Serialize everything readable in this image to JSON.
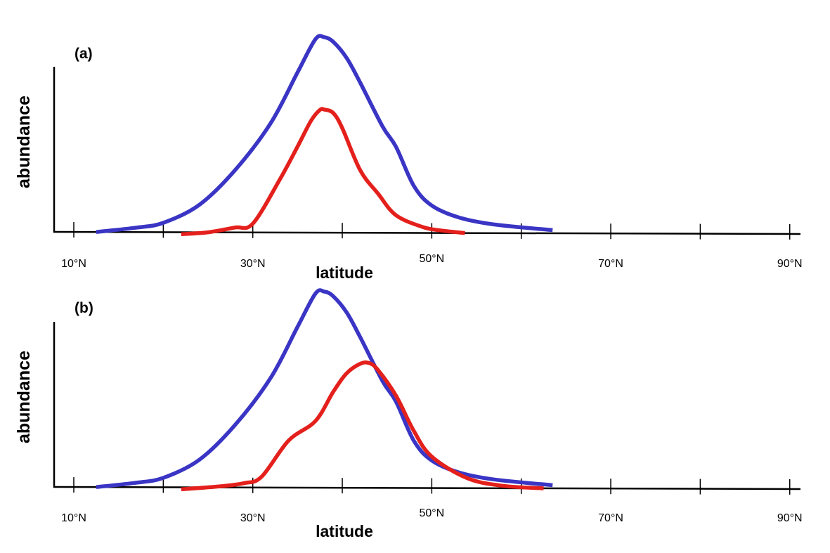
{
  "chart_data": [
    {
      "type": "line",
      "panel_label": "(a)",
      "xlabel": "latitude",
      "ylabel": "abundance",
      "x_unit": "°N",
      "xlim": [
        7.8,
        91.2
      ],
      "ylim": [
        0,
        1.0
      ],
      "x_ticks": [
        10,
        20,
        30,
        40,
        50,
        60,
        70,
        80,
        90
      ],
      "x_tick_labels": [
        {
          "x": 10,
          "label": "10°N"
        },
        {
          "x": 30,
          "label": "30°N"
        },
        {
          "x": 50,
          "label": "50°N"
        },
        {
          "x": 70,
          "label": "70°N"
        },
        {
          "x": 90,
          "label": "90°N"
        }
      ],
      "grid": false,
      "legend": "none",
      "series": [
        {
          "color": "#3a35c4",
          "x": [
            12.5,
            17,
            20,
            24,
            28,
            32,
            35,
            37,
            38,
            39,
            40.5,
            42,
            44.5,
            46,
            48,
            50,
            53,
            57,
            63.5
          ],
          "y": [
            0.0,
            0.023,
            0.048,
            0.14,
            0.318,
            0.56,
            0.82,
            0.99,
            1.0,
            0.976,
            0.893,
            0.768,
            0.544,
            0.44,
            0.24,
            0.14,
            0.08,
            0.044,
            0.016
          ]
        },
        {
          "color": "#e4201c",
          "x": [
            22,
            25,
            28,
            30,
            33,
            35,
            36.5,
            37.5,
            38,
            39,
            40,
            42,
            44,
            46,
            49,
            51,
            53.7
          ],
          "y": [
            -0.01,
            0.0,
            0.025,
            0.045,
            0.27,
            0.44,
            0.572,
            0.628,
            0.63,
            0.612,
            0.535,
            0.32,
            0.2,
            0.09,
            0.03,
            0.013,
            0.0
          ]
        }
      ]
    },
    {
      "type": "line",
      "panel_label": "(b)",
      "xlabel": "latitude",
      "ylabel": "abundance",
      "x_unit": "°N",
      "xlim": [
        7.8,
        91.2
      ],
      "ylim": [
        0,
        1.0
      ],
      "x_ticks": [
        10,
        20,
        30,
        40,
        50,
        60,
        70,
        80,
        90
      ],
      "x_tick_labels": [
        {
          "x": 10,
          "label": "10°N"
        },
        {
          "x": 30,
          "label": "30°N"
        },
        {
          "x": 50,
          "label": "50°N"
        },
        {
          "x": 70,
          "label": "70°N"
        },
        {
          "x": 90,
          "label": "90°N"
        }
      ],
      "grid": false,
      "legend": "none",
      "series": [
        {
          "color": "#3a35c4",
          "x": [
            12.5,
            17,
            20,
            24,
            28,
            32,
            35,
            37,
            38,
            39,
            40.5,
            42,
            44.5,
            46,
            48,
            50,
            53,
            57,
            63.5
          ],
          "y": [
            0.0,
            0.023,
            0.048,
            0.14,
            0.318,
            0.56,
            0.82,
            0.99,
            1.0,
            0.976,
            0.893,
            0.768,
            0.544,
            0.44,
            0.24,
            0.14,
            0.08,
            0.044,
            0.016
          ]
        },
        {
          "color": "#e4201c",
          "x": [
            22,
            26,
            29,
            31,
            34,
            37,
            39,
            40.5,
            42,
            43,
            44,
            46,
            48,
            50,
            54,
            58,
            62.5
          ],
          "y": [
            -0.01,
            0.004,
            0.022,
            0.056,
            0.24,
            0.34,
            0.49,
            0.584,
            0.632,
            0.636,
            0.6,
            0.47,
            0.29,
            0.16,
            0.05,
            0.012,
            0.0
          ]
        }
      ]
    }
  ]
}
